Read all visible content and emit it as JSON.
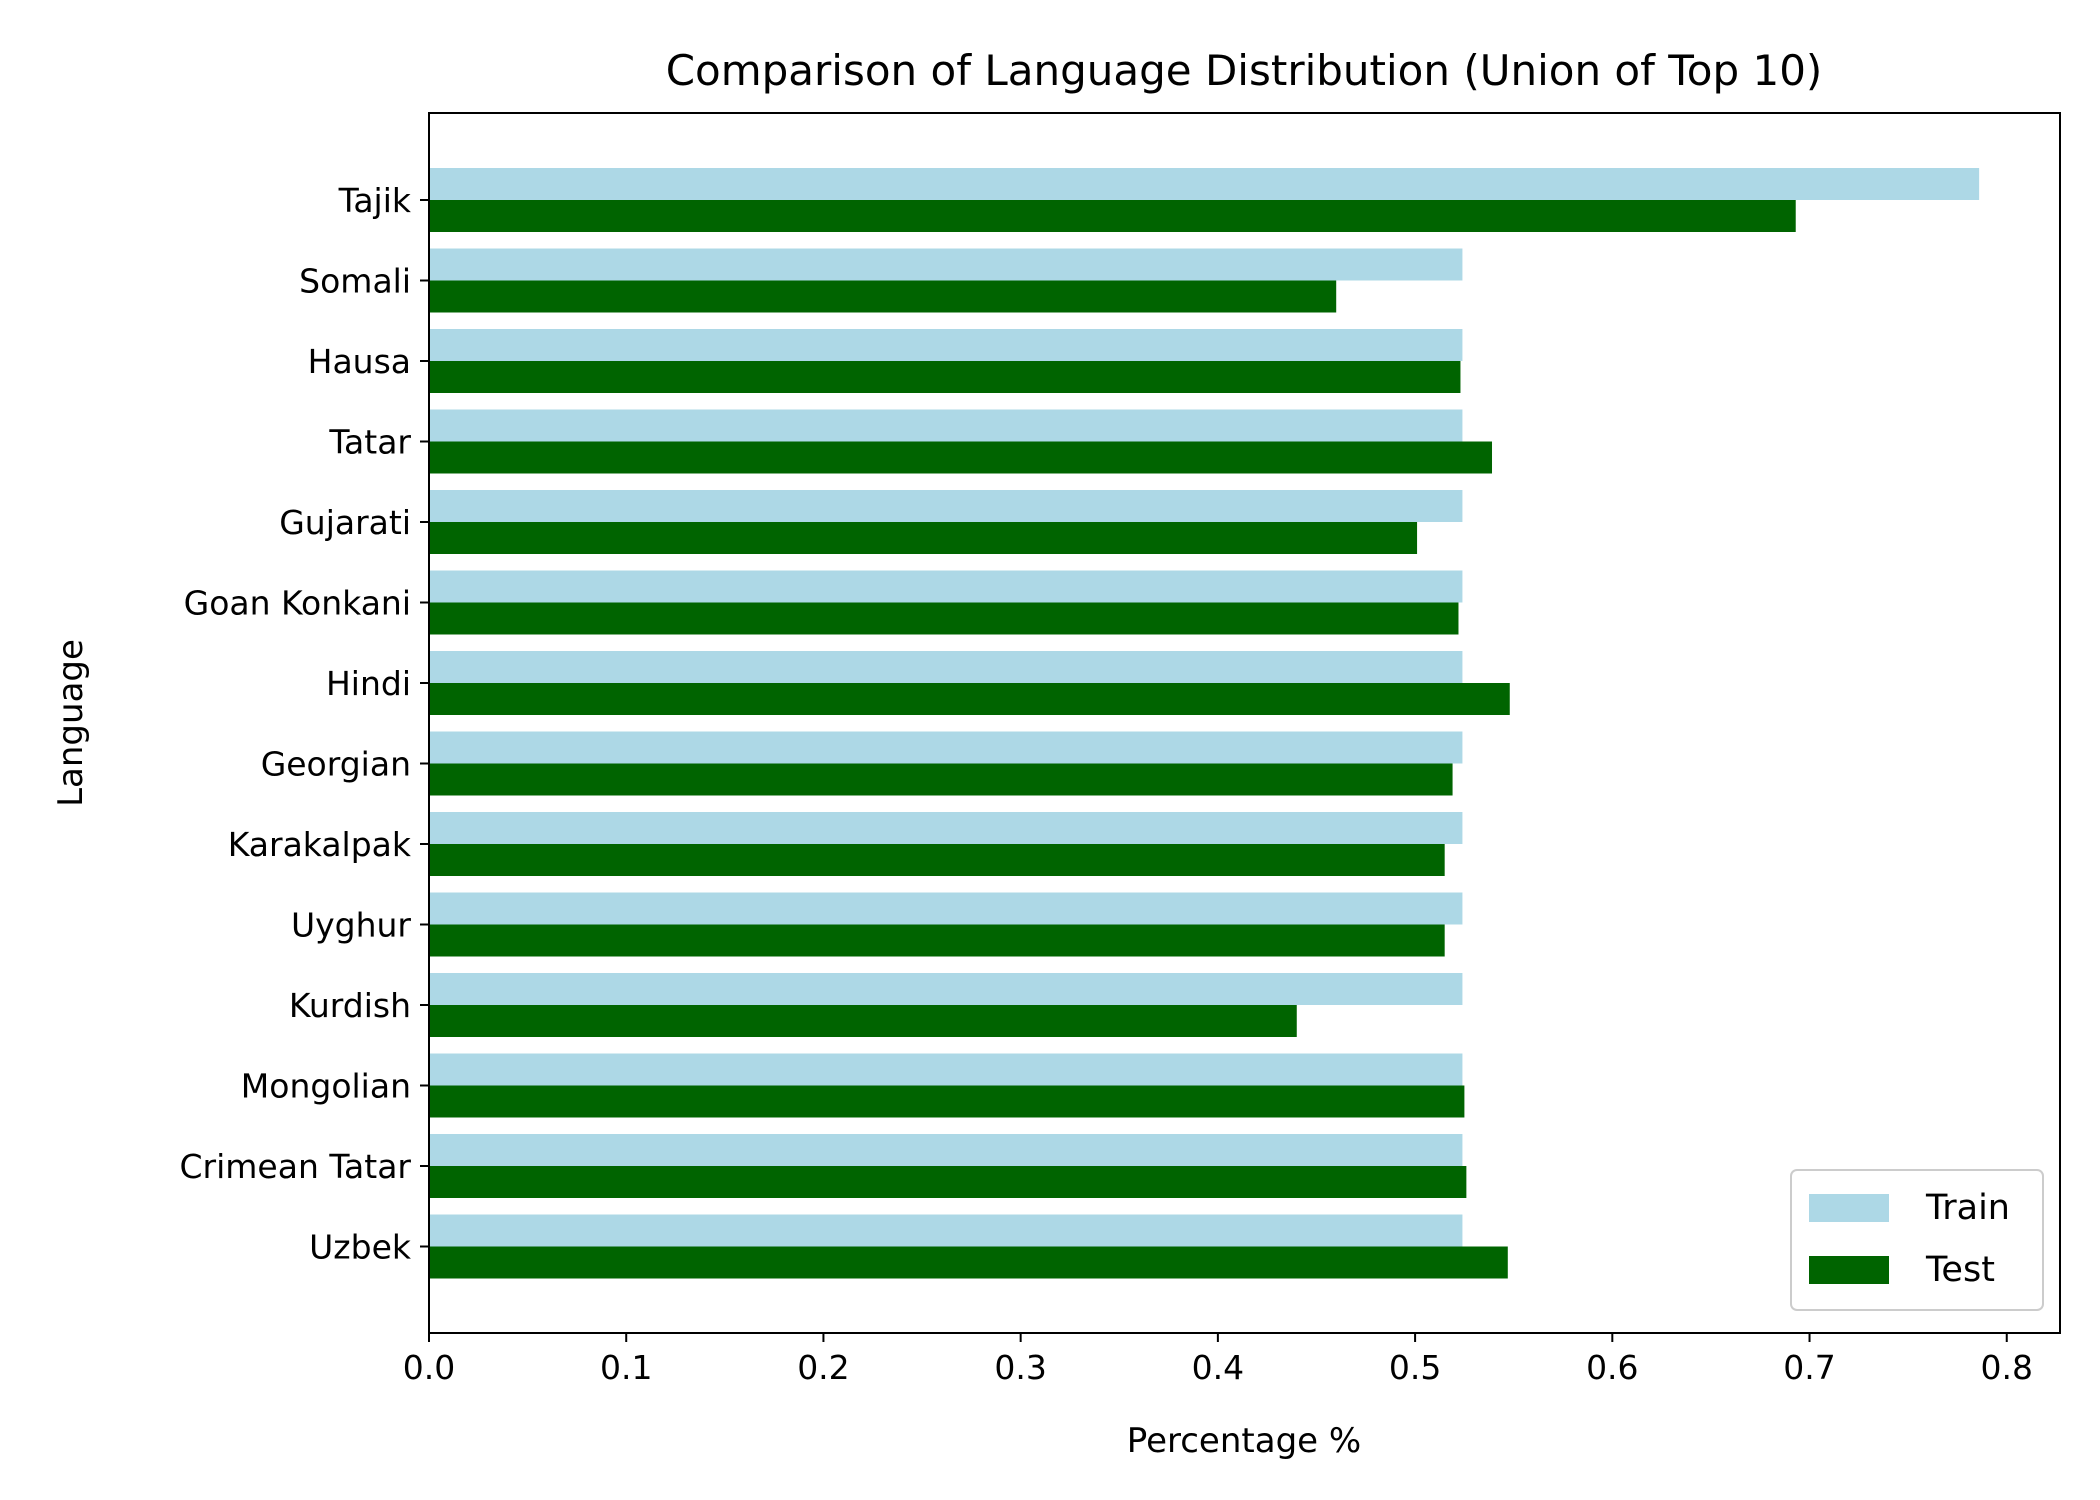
{
  "chart_data": {
    "type": "bar",
    "orientation": "horizontal",
    "title": "Comparison of Language Distribution (Union of Top 10)",
    "xlabel": "Percentage %",
    "ylabel": "Language",
    "xlim": [
      0,
      0.827
    ],
    "xticks": [
      0.0,
      0.1,
      0.2,
      0.3,
      0.4,
      0.5,
      0.6,
      0.7,
      0.8
    ],
    "xtick_labels": [
      "0.0",
      "0.1",
      "0.2",
      "0.3",
      "0.4",
      "0.5",
      "0.6",
      "0.7",
      "0.8"
    ],
    "grid": false,
    "legend_position": "lower-right",
    "categories": [
      "Tajik",
      "Somali",
      "Hausa",
      "Tatar",
      "Gujarati",
      "Goan Konkani",
      "Hindi",
      "Georgian",
      "Karakalpak",
      "Uyghur",
      "Kurdish",
      "Mongolian",
      "Crimean Tatar",
      "Uzbek"
    ],
    "series": [
      {
        "name": "Train",
        "color": "#add8e6",
        "values": [
          0.786,
          0.524,
          0.524,
          0.524,
          0.524,
          0.524,
          0.524,
          0.524,
          0.524,
          0.524,
          0.524,
          0.524,
          0.524,
          0.524
        ]
      },
      {
        "name": "Test",
        "color": "#006400",
        "values": [
          0.693,
          0.46,
          0.523,
          0.539,
          0.501,
          0.522,
          0.548,
          0.519,
          0.515,
          0.515,
          0.44,
          0.525,
          0.526,
          0.547
        ]
      }
    ]
  }
}
